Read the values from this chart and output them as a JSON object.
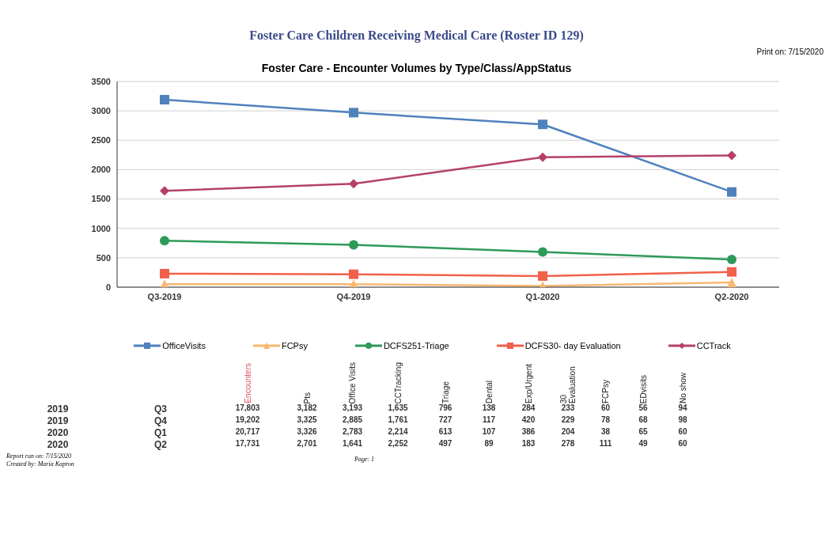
{
  "chart_data": [
    {
      "type": "other",
      "title": "Foster Care Children Receiving Medical Care (Roster ID 129)",
      "annotations": [
        "Print on:  7/15/2020"
      ]
    },
    {
      "type": "line",
      "title": "Foster Care - Encounter Volumes by Type/Class/AppStatus",
      "categories": [
        "Q3-2019",
        "Q4-2019",
        "Q1-2020",
        "Q2-2020"
      ],
      "ylim": [
        0,
        3500
      ],
      "yticks": [
        0,
        500,
        1000,
        1500,
        2000,
        2500,
        3000,
        3500
      ],
      "grid": "y",
      "legend": "bottom",
      "series": [
        {
          "name": "OfficeVisits",
          "color": "#4f81bd",
          "marker": "square",
          "values": [
            3190,
            2970,
            2770,
            1620
          ]
        },
        {
          "name": "FCPsy",
          "color": "#f9b870",
          "marker": "triangle",
          "values": [
            50,
            50,
            20,
            80
          ]
        },
        {
          "name": "DCFS251-Triage",
          "color": "#2e9a5a",
          "marker": "circle",
          "values": [
            790,
            720,
            600,
            470
          ]
        },
        {
          "name": "DCFS30- day Evaluation",
          "color": "#f0604a",
          "marker": "square",
          "values": [
            230,
            220,
            190,
            260
          ]
        },
        {
          "name": "CCTrack",
          "color": "#b5406b",
          "marker": "diamond",
          "values": [
            1640,
            1760,
            2210,
            2240
          ]
        }
      ]
    },
    {
      "type": "other",
      "categories": [
        null,
        null,
        "Encounters",
        "Pts",
        "Office Visits",
        "CCTracking",
        "Triage",
        "Dental",
        "Exp/Urgent",
        "30 Evaluation",
        "FCPsy",
        "EDvisits",
        "No show"
      ],
      "cell_labels": [
        [
          "2019",
          "Q3",
          "17,803",
          "3,182",
          "3,193",
          "1,635",
          "796",
          "138",
          "284",
          "233",
          "60",
          "56",
          "94"
        ],
        [
          "2019",
          "Q4",
          "19,202",
          "3,325",
          "2,885",
          "1,761",
          "727",
          "117",
          "420",
          "229",
          "78",
          "68",
          "98"
        ],
        [
          "2020",
          "Q1",
          "20,717",
          "3,326",
          "2,783",
          "2,214",
          "613",
          "107",
          "386",
          "204",
          "38",
          "65",
          "60"
        ],
        [
          "2020",
          "Q2",
          "17,731",
          "2,701",
          "1,641",
          "2,252",
          "497",
          "89",
          "183",
          "278",
          "111",
          "49",
          "60"
        ]
      ],
      "annotations": [
        "Report run on:  7/15/2020",
        "Created by:  Maria Kapron",
        "Page:  1"
      ]
    }
  ]
}
